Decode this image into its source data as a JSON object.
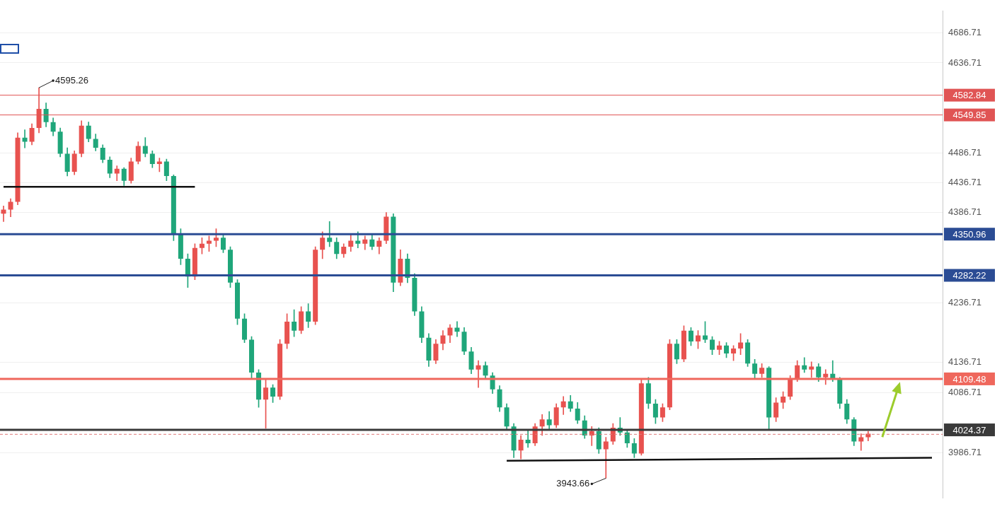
{
  "chart_data": {
    "type": "candlestick",
    "categories": [
      null,
      null,
      null,
      null,
      null,
      null,
      null,
      null,
      null,
      null,
      null,
      null,
      null,
      null,
      null,
      null,
      null,
      null,
      null,
      null,
      null,
      null,
      null,
      null,
      null,
      null,
      null,
      null,
      null,
      null,
      null,
      null,
      null,
      null,
      null,
      null,
      null,
      null,
      null,
      null,
      null,
      null,
      null,
      null,
      null,
      null,
      null,
      null,
      null,
      null,
      null,
      null,
      null,
      null,
      null,
      null,
      null,
      null,
      null,
      null,
      null,
      null,
      null,
      null,
      null,
      null,
      null,
      null,
      null,
      null,
      null,
      null,
      null,
      null,
      null,
      null,
      null,
      null,
      null,
      null,
      null,
      null,
      null,
      null,
      null,
      null,
      null,
      null,
      null,
      null,
      null,
      null,
      null,
      null,
      null,
      null,
      null,
      null,
      null,
      null,
      null,
      null,
      null,
      null,
      null,
      null,
      null,
      null,
      null,
      null,
      null,
      null,
      null,
      null,
      null,
      null,
      null,
      null,
      null,
      null,
      null,
      null,
      null,
      null,
      null,
      null,
      null,
      null,
      null,
      null,
      null,
      null,
      null
    ],
    "ohlc": [
      [
        4385,
        4398,
        4372,
        4392
      ],
      [
        4392,
        4410,
        4380,
        4405
      ],
      [
        4405,
        4520,
        4400,
        4512
      ],
      [
        4512,
        4525,
        4495,
        4505
      ],
      [
        4505,
        4535,
        4500,
        4528
      ],
      [
        4528,
        4595.26,
        4520,
        4560
      ],
      [
        4560,
        4570,
        4530,
        4538
      ],
      [
        4538,
        4545,
        4515,
        4522
      ],
      [
        4522,
        4528,
        4480,
        4485
      ],
      [
        4485,
        4495,
        4448,
        4455
      ],
      [
        4455,
        4490,
        4450,
        4485
      ],
      [
        4485,
        4540,
        4480,
        4532
      ],
      [
        4532,
        4538,
        4505,
        4510
      ],
      [
        4510,
        4518,
        4490,
        4495
      ],
      [
        4495,
        4500,
        4470,
        4475
      ],
      [
        4475,
        4480,
        4445,
        4452
      ],
      [
        4452,
        4465,
        4440,
        4460
      ],
      [
        4460,
        4462,
        4432,
        4440
      ],
      [
        4440,
        4478,
        4436,
        4472
      ],
      [
        4472,
        4505,
        4468,
        4498
      ],
      [
        4498,
        4512,
        4480,
        4485
      ],
      [
        4485,
        4490,
        4462,
        4468
      ],
      [
        4468,
        4478,
        4455,
        4472
      ],
      [
        4472,
        4476,
        4440,
        4448
      ],
      [
        4448,
        4450,
        4340,
        4352
      ],
      [
        4352,
        4360,
        4300,
        4310
      ],
      [
        4310,
        4318,
        4262,
        4280
      ],
      [
        4280,
        4335,
        4275,
        4328
      ],
      [
        4328,
        4345,
        4318,
        4335
      ],
      [
        4335,
        4348,
        4322,
        4340
      ],
      [
        4340,
        4360,
        4330,
        4345
      ],
      [
        4345,
        4350,
        4320,
        4325
      ],
      [
        4325,
        4330,
        4262,
        4270
      ],
      [
        4270,
        4275,
        4200,
        4210
      ],
      [
        4210,
        4218,
        4170,
        4175
      ],
      [
        4175,
        4180,
        4110,
        4120
      ],
      [
        4120,
        4125,
        4062,
        4075
      ],
      [
        4075,
        4110,
        4027,
        4095
      ],
      [
        4095,
        4100,
        4070,
        4080
      ],
      [
        4080,
        4175,
        4075,
        4168
      ],
      [
        4168,
        4218,
        4160,
        4205
      ],
      [
        4205,
        4225,
        4180,
        4190
      ],
      [
        4190,
        4230,
        4185,
        4222
      ],
      [
        4222,
        4235,
        4195,
        4205
      ],
      [
        4205,
        4330,
        4200,
        4325
      ],
      [
        4325,
        4355,
        4310,
        4345
      ],
      [
        4345,
        4372,
        4330,
        4338
      ],
      [
        4338,
        4345,
        4310,
        4318
      ],
      [
        4318,
        4335,
        4312,
        4330
      ],
      [
        4330,
        4350,
        4322,
        4340
      ],
      [
        4340,
        4355,
        4328,
        4335
      ],
      [
        4335,
        4348,
        4325,
        4342
      ],
      [
        4342,
        4350,
        4325,
        4330
      ],
      [
        4330,
        4345,
        4318,
        4340
      ],
      [
        4340,
        4387,
        4335,
        4380
      ],
      [
        4380,
        4385,
        4255,
        4270
      ],
      [
        4270,
        4325,
        4265,
        4310
      ],
      [
        4310,
        4318,
        4270,
        4278
      ],
      [
        4278,
        4285,
        4215,
        4222
      ],
      [
        4222,
        4230,
        4170,
        4178
      ],
      [
        4178,
        4185,
        4130,
        4140
      ],
      [
        4140,
        4175,
        4135,
        4168
      ],
      [
        4168,
        4190,
        4158,
        4182
      ],
      [
        4182,
        4200,
        4170,
        4195
      ],
      [
        4195,
        4205,
        4180,
        4188
      ],
      [
        4188,
        4195,
        4150,
        4155
      ],
      [
        4155,
        4162,
        4118,
        4125
      ],
      [
        4125,
        4140,
        4095,
        4132
      ],
      [
        4132,
        4138,
        4110,
        4115
      ],
      [
        4115,
        4120,
        4085,
        4092
      ],
      [
        4092,
        4098,
        4055,
        4062
      ],
      [
        4062,
        4068,
        4025,
        4030
      ],
      [
        4030,
        4035,
        3978,
        3990
      ],
      [
        3990,
        4015,
        3976,
        4008
      ],
      [
        4008,
        4025,
        3995,
        4002
      ],
      [
        4002,
        4035,
        3998,
        4030
      ],
      [
        4030,
        4050,
        4015,
        4042
      ],
      [
        4042,
        4055,
        4025,
        4032
      ],
      [
        4032,
        4068,
        4028,
        4062
      ],
      [
        4062,
        4080,
        4050,
        4072
      ],
      [
        4072,
        4082,
        4055,
        4060
      ],
      [
        4060,
        4070,
        4035,
        4040
      ],
      [
        4040,
        4048,
        4010,
        4015
      ],
      [
        4015,
        4030,
        3998,
        4022
      ],
      [
        4022,
        4028,
        3985,
        3992
      ],
      [
        3992,
        4012,
        3943.66,
        4005
      ],
      [
        4005,
        4035,
        4000,
        4028
      ],
      [
        4028,
        4045,
        4015,
        4020
      ],
      [
        4020,
        4025,
        3995,
        4002
      ],
      [
        4002,
        4010,
        3978,
        3985
      ],
      [
        3985,
        4110,
        3982,
        4102
      ],
      [
        4102,
        4112,
        4060,
        4068
      ],
      [
        4068,
        4075,
        4035,
        4045
      ],
      [
        4045,
        4068,
        4038,
        4062
      ],
      [
        4062,
        4175,
        4058,
        4168
      ],
      [
        4168,
        4175,
        4135,
        4142
      ],
      [
        4142,
        4198,
        4138,
        4190
      ],
      [
        4190,
        4195,
        4165,
        4172
      ],
      [
        4172,
        4190,
        4160,
        4182
      ],
      [
        4182,
        4205,
        4170,
        4175
      ],
      [
        4175,
        4180,
        4150,
        4158
      ],
      [
        4158,
        4172,
        4150,
        4165
      ],
      [
        4165,
        4170,
        4145,
        4152
      ],
      [
        4152,
        4165,
        4140,
        4160
      ],
      [
        4160,
        4185,
        4150,
        4170
      ],
      [
        4170,
        4175,
        4130,
        4135
      ],
      [
        4135,
        4142,
        4110,
        4118
      ],
      [
        4118,
        4135,
        4112,
        4128
      ],
      [
        4128,
        4130,
        4025,
        4045
      ],
      [
        4045,
        4078,
        4038,
        4070
      ],
      [
        4070,
        4088,
        4060,
        4080
      ],
      [
        4080,
        4115,
        4075,
        4110
      ],
      [
        4110,
        4140,
        4105,
        4132
      ],
      [
        4132,
        4145,
        4120,
        4125
      ],
      [
        4125,
        4138,
        4112,
        4130
      ],
      [
        4130,
        4135,
        4105,
        4112
      ],
      [
        4112,
        4125,
        4100,
        4118
      ],
      [
        4118,
        4140,
        4105,
        4110
      ],
      [
        4110,
        4112,
        4060,
        4068
      ],
      [
        4068,
        4075,
        4035,
        4042
      ],
      [
        4042,
        4045,
        3998,
        4005
      ],
      [
        4005,
        4018,
        3990,
        4012
      ],
      [
        4012,
        4022,
        4006,
        4018
      ],
      null,
      null,
      null,
      null,
      null,
      null,
      null,
      null,
      null,
      null
    ],
    "color": {
      "up": "#e8524f",
      "down": "#1fa67a"
    },
    "lines": [
      {
        "value": 4582.84,
        "color": "#e05454",
        "line_style": "thin"
      },
      {
        "value": 4549.85,
        "color": "#e05454",
        "line_style": "thin"
      },
      {
        "value": 4350.96,
        "color": "#2b4c94",
        "line_style": "solid"
      },
      {
        "value": 4282.22,
        "color": "#2b4c94",
        "line_style": "solid"
      },
      {
        "value": 4109.48,
        "color": "#ef675c",
        "line_style": "solid"
      },
      {
        "value": 4024.37,
        "color": "#3a3a3a",
        "line_style": "solid"
      }
    ],
    "last_price": {
      "value": 4017,
      "color": "#e07a7a",
      "line_style": "dashed"
    },
    "segments": [
      {
        "start": [
          0,
          4430
        ],
        "end": [
          27,
          4430
        ],
        "color": "#111111"
      },
      {
        "start": [
          71,
          3973
        ],
        "end": [
          131,
          3978
        ],
        "color": "#111111"
      }
    ],
    "annotations": [
      {
        "text": "4595.26",
        "x": 5,
        "y": 4595.26
      },
      {
        "text": "3943.66",
        "x": 85,
        "y": 3943.66
      }
    ],
    "ylim": [
      3911,
      4723
    ],
    "yticks": [
      3986.71,
      4086.71,
      4136.71,
      4236.71,
      4386.71,
      4436.71,
      4486.71,
      4636.71,
      4686.71
    ],
    "grid": true,
    "tick_labels": "y"
  }
}
